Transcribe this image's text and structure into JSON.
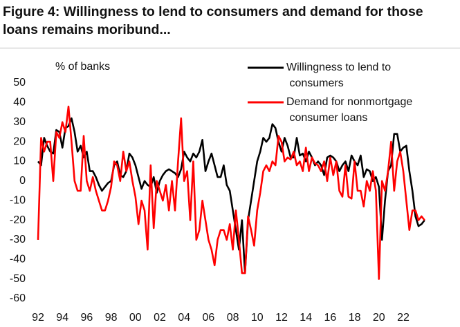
{
  "chart_data": {
    "type": "line",
    "title": "Figure 4: Willingness to lend to consumers and demand for those loans remains moribund...",
    "y_label": "% of banks",
    "categories": [
      "92",
      null,
      null,
      null,
      null,
      null,
      null,
      null,
      "94",
      null,
      null,
      null,
      null,
      null,
      null,
      null,
      "96",
      null,
      null,
      null,
      null,
      null,
      null,
      null,
      "98",
      null,
      null,
      null,
      null,
      null,
      null,
      null,
      "00",
      null,
      null,
      null,
      null,
      null,
      null,
      null,
      "02",
      null,
      null,
      null,
      null,
      null,
      null,
      null,
      "04",
      null,
      null,
      null,
      null,
      null,
      null,
      null,
      "06",
      null,
      null,
      null,
      null,
      null,
      null,
      null,
      "08",
      null,
      null,
      null,
      null,
      null,
      null,
      null,
      "10",
      null,
      null,
      null,
      null,
      null,
      null,
      null,
      "12",
      null,
      null,
      null,
      null,
      null,
      null,
      null,
      "14",
      null,
      null,
      null,
      null,
      null,
      null,
      null,
      "16",
      null,
      null,
      null,
      null,
      null,
      null,
      null,
      "18",
      null,
      null,
      null,
      null,
      null,
      null,
      null,
      "20",
      null,
      null,
      null,
      null,
      null,
      null,
      null,
      "22",
      null,
      null,
      null,
      null,
      null,
      null,
      null
    ],
    "series": [
      {
        "name": "Willingness to lend to consumers",
        "color": "#000000",
        "values": [
          10,
          8,
          22,
          18,
          15,
          14,
          26,
          25,
          17,
          27,
          28,
          32,
          25,
          15,
          18,
          12,
          15,
          5,
          5,
          2,
          -2,
          -5,
          -3,
          -1,
          0,
          8,
          10,
          3,
          2,
          5,
          14,
          12,
          8,
          2,
          -4,
          0,
          -2,
          -3,
          2,
          -6,
          0,
          3,
          5,
          6,
          5,
          4,
          2,
          6,
          15,
          12,
          10,
          14,
          12,
          15,
          21,
          5,
          10,
          14,
          8,
          2,
          2,
          8,
          -2,
          -5,
          -15,
          -25,
          -35,
          -20,
          -47,
          -20,
          -10,
          0,
          10,
          15,
          22,
          20,
          22,
          29,
          27,
          20,
          15,
          22,
          18,
          12,
          12,
          22,
          13,
          14,
          10,
          15,
          12,
          8,
          10,
          8,
          3,
          12,
          13,
          12,
          10,
          5,
          8,
          10,
          5,
          13,
          10,
          8,
          13,
          2,
          6,
          5,
          0,
          2,
          -3,
          -30,
          -10,
          5,
          8,
          24,
          24,
          15,
          17,
          18,
          5,
          -5,
          -18,
          -23,
          -22,
          -20
        ]
      },
      {
        "name": "Demand for nonmortgage consumer loans",
        "color": "#ff0000",
        "values": [
          -30,
          22,
          15,
          20,
          20,
          0,
          25,
          22,
          30,
          25,
          38,
          20,
          0,
          -5,
          -5,
          23,
          0,
          -5,
          2,
          -5,
          -10,
          -15,
          -15,
          -10,
          -3,
          10,
          8,
          0,
          15,
          5,
          10,
          0,
          -8,
          -22,
          -10,
          -15,
          -35,
          8,
          -24,
          0,
          -5,
          -10,
          -2,
          -15,
          0,
          -15,
          10,
          32,
          0,
          5,
          -20,
          10,
          -30,
          -25,
          -10,
          -20,
          -30,
          -35,
          -43,
          -30,
          -25,
          -25,
          -30,
          -22,
          -35,
          -15,
          -30,
          -47,
          -47,
          -18,
          -25,
          -33,
          -15,
          -6,
          5,
          8,
          5,
          10,
          8,
          23,
          20,
          10,
          12,
          11,
          15,
          8,
          10,
          5,
          17,
          5,
          12,
          9,
          8,
          5,
          10,
          0,
          12,
          3,
          10,
          -5,
          -8,
          8,
          -8,
          -9,
          10,
          -5,
          -5,
          -13,
          0,
          -5,
          5,
          -5,
          -50,
          0,
          -5,
          5,
          20,
          -5,
          10,
          15,
          5,
          -10,
          -25,
          -15,
          -15,
          -20,
          -18,
          -20
        ]
      }
    ],
    "ylim": [
      -60,
      50
    ],
    "yticks": [
      -60,
      -50,
      -40,
      -30,
      -20,
      -10,
      0,
      10,
      20,
      30,
      40,
      50
    ]
  }
}
